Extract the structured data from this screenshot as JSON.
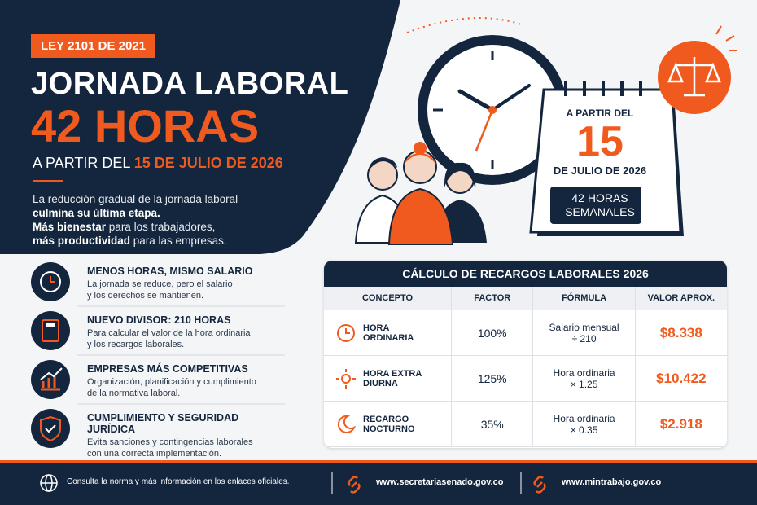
{
  "badge": "LEY 2101 DE 2021",
  "title": {
    "line1": "JORNADA LABORAL",
    "line2": "42 HORAS"
  },
  "subtitle": {
    "prefix": "A PARTIR DEL",
    "date": "15 DE JULIO DE 2026"
  },
  "intro": {
    "line1": "La reducción gradual de la jornada laboral",
    "line2": "culmina su última etapa.",
    "line3_bold": "Más bienestar",
    "line3_rest": " para los trabajadores,",
    "line4_bold": "más productividad",
    "line4_rest": " para las empresas."
  },
  "calendar": {
    "prefix": "A PARTIR DEL",
    "day": "15",
    "month": "DE JULIO DE 2026",
    "hours1": "42 HORAS",
    "hours2": "SEMANALES"
  },
  "features": [
    {
      "title": "MENOS HORAS, MISMO SALARIO",
      "line1": "La jornada se reduce, pero el salario",
      "line2": "y los derechos se mantienen."
    },
    {
      "title": "NUEVO DIVISOR: 210 HORAS",
      "line1": "Para calcular el valor de la hora ordinaria",
      "line2": "y los recargos laborales."
    },
    {
      "title": "EMPRESAS MÁS COMPETITIVAS",
      "line1": "Organización, planificación y cumplimiento",
      "line2": "de la normativa laboral."
    },
    {
      "title": "CUMPLIMIENTO Y SEGURIDAD JURÍDICA",
      "line1": "Evita sanciones y contingencias laborales",
      "line2": "con una correcta implementación."
    }
  ],
  "table": {
    "title": "CÁLCULO DE RECARGOS LABORALES 2026",
    "headers": [
      "CONCEPTO",
      "FACTOR",
      "FÓRMULA",
      "VALOR APROX."
    ],
    "rows": [
      {
        "concept": "HORA ORDINARIA",
        "factor": "100%",
        "formula1": "Salario mensual",
        "formula2": "÷ 210",
        "value": "$8.338"
      },
      {
        "concept": "HORA EXTRA DIURNA",
        "factor": "125%",
        "formula1": "Hora ordinaria",
        "formula2": "× 1.25",
        "value": "$10.422"
      },
      {
        "concept": "RECARGO NOCTURNO",
        "factor": "35%",
        "formula1": "Hora ordinaria",
        "formula2": "× 0.35",
        "value": "$2.918"
      }
    ]
  },
  "footer": {
    "note": "Consulta la norma y más información en los enlaces oficiales.",
    "link1": "www.secretariasenado.gov.co",
    "link2": "www.mintrabajo.gov.co"
  }
}
